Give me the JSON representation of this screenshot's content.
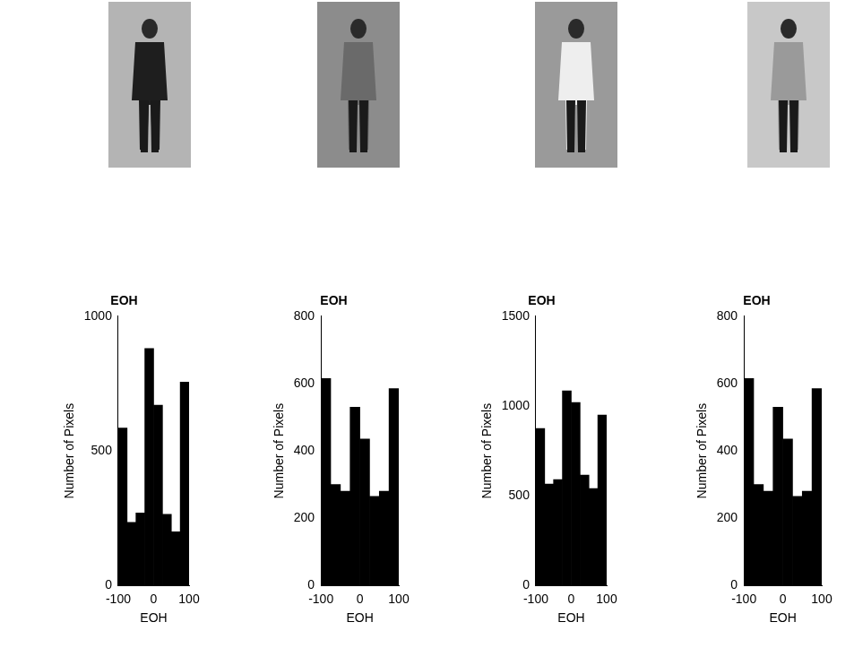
{
  "chart_data": [
    {
      "type": "histogram",
      "title": "EOH",
      "x_label": "EOH",
      "y_label": "Number of Pixels",
      "bins": [
        -100,
        -75,
        -50,
        -25,
        0,
        25,
        50,
        75,
        100
      ],
      "values": [
        585,
        235,
        270,
        880,
        670,
        265,
        200,
        755
      ],
      "color": "#000000",
      "xlim": [
        -100,
        100
      ],
      "xticks": [
        -100,
        0,
        100
      ],
      "ylim": [
        0,
        1000
      ],
      "yticks": [
        0,
        500,
        1000
      ],
      "grid": false
    },
    {
      "type": "histogram",
      "title": "EOH",
      "x_label": "EOH",
      "y_label": "Number of Pixels",
      "bins": [
        -100,
        -75,
        -50,
        -25,
        0,
        25,
        50,
        75,
        100
      ],
      "values": [
        615,
        300,
        280,
        530,
        435,
        265,
        280,
        585
      ],
      "color": "#000000",
      "xlim": [
        -100,
        100
      ],
      "xticks": [
        -100,
        0,
        100
      ],
      "ylim": [
        0,
        800
      ],
      "yticks": [
        0,
        200,
        400,
        600,
        800
      ],
      "grid": false
    },
    {
      "type": "histogram",
      "title": "EOH",
      "x_label": "EOH",
      "y_label": "Number of Pixels",
      "bins": [
        -100,
        -75,
        -50,
        -25,
        0,
        25,
        50,
        75,
        100
      ],
      "values": [
        875,
        565,
        590,
        1085,
        1020,
        615,
        540,
        950
      ],
      "color": "#000000",
      "xlim": [
        -100,
        100
      ],
      "xticks": [
        -100,
        0,
        100
      ],
      "ylim": [
        0,
        1500
      ],
      "yticks": [
        0,
        500,
        1000,
        1500
      ],
      "grid": false
    },
    {
      "type": "histogram",
      "title": "EOH",
      "x_label": "EOH",
      "y_label": "Number of Pixels",
      "bins": [
        -100,
        -75,
        -50,
        -25,
        0,
        25,
        50,
        75,
        100
      ],
      "values": [
        615,
        300,
        280,
        530,
        435,
        265,
        280,
        585
      ],
      "color": "#000000",
      "xlim": [
        -100,
        100
      ],
      "xticks": [
        -100,
        0,
        100
      ],
      "ylim": [
        0,
        800
      ],
      "yticks": [
        0,
        200,
        400,
        600,
        800
      ],
      "grid": false
    }
  ]
}
